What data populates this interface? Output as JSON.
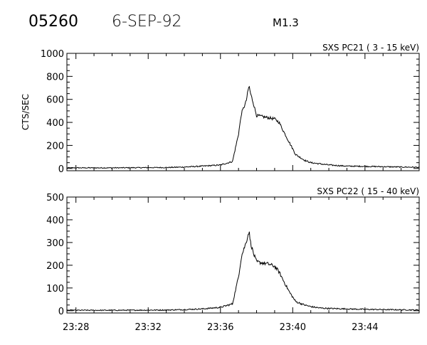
{
  "header": {
    "event_number": "05260",
    "date": "6-SEP-92",
    "flare_class": "M1.3"
  },
  "chart_data": [
    {
      "type": "line",
      "title": "SXS PC21  (  3 - 15 keV)",
      "ylabel": "CTS/SEC",
      "xlabel": "",
      "xlim": [
        "23:27:30",
        "23:47:00"
      ],
      "ylim": [
        -20,
        1000
      ],
      "yticks": [
        0,
        200,
        400,
        600,
        800,
        1000
      ],
      "xticks": [],
      "grid": false,
      "series": [
        {
          "x": [
            "23:27:30",
            "23:30:00",
            "23:33:00",
            "23:34:00",
            "23:35:00",
            "23:36:00",
            "23:36:40",
            "23:37:00",
            "23:37:10",
            "23:37:25",
            "23:37:35",
            "23:37:40",
            "23:37:50",
            "23:38:00",
            "23:38:20",
            "23:38:40",
            "23:39:00",
            "23:39:15",
            "23:39:30",
            "23:39:50",
            "23:40:10",
            "23:40:40",
            "23:41:00",
            "23:41:30",
            "23:42:00",
            "23:43:00",
            "23:44:00",
            "23:45:00",
            "23:46:00",
            "23:47:00"
          ],
          "y": [
            5,
            5,
            8,
            12,
            20,
            30,
            60,
            300,
            480,
            580,
            720,
            650,
            560,
            460,
            450,
            440,
            430,
            400,
            320,
            220,
            120,
            70,
            50,
            40,
            30,
            20,
            18,
            15,
            12,
            10
          ]
        }
      ]
    },
    {
      "type": "line",
      "title": "SXS PC22  ( 15 - 40 keV)",
      "ylabel": "",
      "xlabel": "",
      "xlim": [
        "23:27:30",
        "23:47:00"
      ],
      "ylim": [
        -10,
        500
      ],
      "yticks": [
        0,
        100,
        200,
        300,
        400,
        500
      ],
      "xticks": [
        "23:28",
        "23:32",
        "23:36",
        "23:40",
        "23:44"
      ],
      "grid": false,
      "series": [
        {
          "x": [
            "23:27:30",
            "23:30:00",
            "23:33:00",
            "23:34:00",
            "23:35:00",
            "23:36:00",
            "23:36:40",
            "23:37:00",
            "23:37:10",
            "23:37:25",
            "23:37:35",
            "23:37:40",
            "23:37:50",
            "23:38:00",
            "23:38:20",
            "23:38:40",
            "23:39:00",
            "23:39:15",
            "23:39:30",
            "23:39:50",
            "23:40:10",
            "23:40:40",
            "23:41:00",
            "23:41:30",
            "23:42:00",
            "23:43:00",
            "23:44:00",
            "23:45:00",
            "23:46:00",
            "23:47:00"
          ],
          "y": [
            2,
            2,
            3,
            5,
            8,
            15,
            30,
            150,
            240,
            300,
            350,
            300,
            250,
            215,
            210,
            205,
            195,
            170,
            130,
            80,
            40,
            25,
            18,
            12,
            10,
            8,
            6,
            5,
            4,
            3
          ]
        }
      ]
    }
  ]
}
